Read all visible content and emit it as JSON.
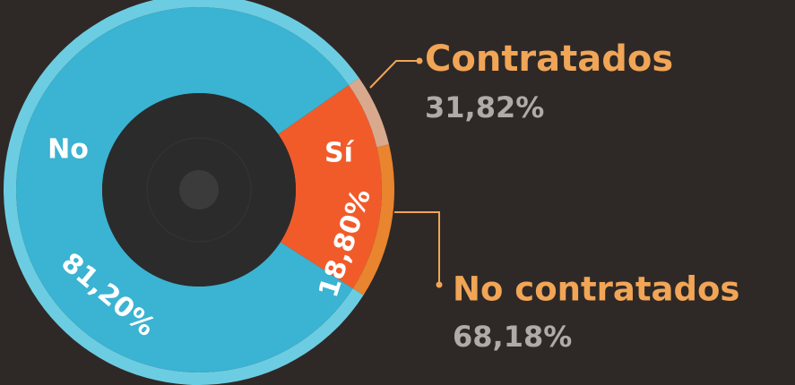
{
  "chart_data": {
    "type": "donut",
    "categories": [
      "No",
      "Sí"
    ],
    "values": [
      81.2,
      18.8
    ],
    "value_labels": [
      "81,20%",
      "18,80%"
    ],
    "colors": [
      "#3bb3d2",
      "#f15b2a"
    ],
    "outer_colors": [
      "#6ccde2",
      null
    ],
    "sub": {
      "parent": 1,
      "categories": [
        "Contratados",
        "No contratados"
      ],
      "values": [
        31.82,
        68.18
      ],
      "value_labels": [
        "31,82%",
        "68,18%"
      ],
      "colors": [
        "#d9a98e",
        "#e9842f"
      ],
      "label_color": "#f1a556"
    }
  }
}
